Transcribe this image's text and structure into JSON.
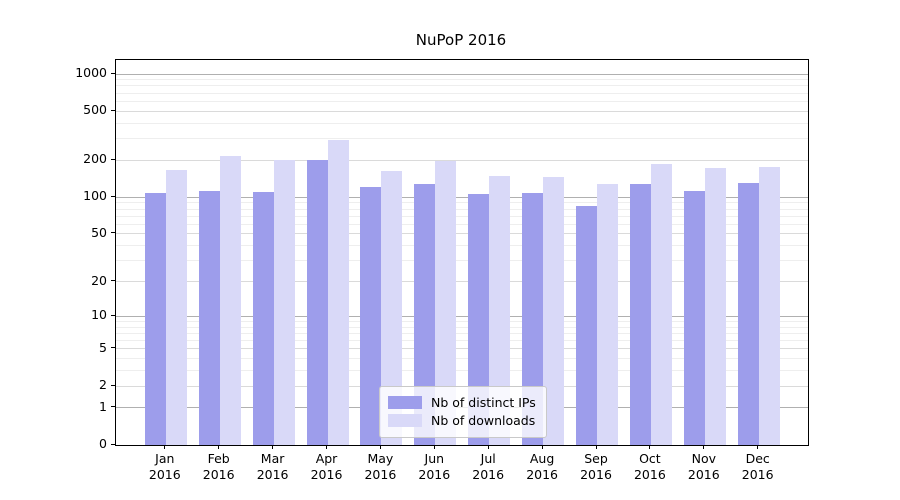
{
  "chart_data": {
    "type": "bar",
    "title": "NuPoP 2016",
    "months": [
      "Jan",
      "Feb",
      "Mar",
      "Apr",
      "May",
      "Jun",
      "Jul",
      "Aug",
      "Sep",
      "Oct",
      "Nov",
      "Dec"
    ],
    "year": "2016",
    "series": [
      {
        "name": "Nb of distinct IPs",
        "color": "#9d9deb",
        "values": [
          108,
          112,
          110,
          200,
          122,
          128,
          107,
          108,
          84,
          127,
          112,
          130
        ]
      },
      {
        "name": "Nb of downloads",
        "color": "#d9d9f8",
        "values": [
          165,
          215,
          202,
          290,
          164,
          196,
          148,
          146,
          129,
          188,
          174,
          176
        ]
      }
    ],
    "y_ticks": [
      0,
      1,
      2,
      5,
      10,
      20,
      50,
      100,
      200,
      500,
      1000
    ],
    "ylim": [
      0,
      1000
    ],
    "yscale": "log1p",
    "grid": true,
    "legend_position": "bottom-center"
  },
  "colors": {
    "grid_major": "#b0b0b0",
    "grid_mid": "#dadada",
    "grid_minor": "#eeeeee",
    "axis": "#000000"
  }
}
